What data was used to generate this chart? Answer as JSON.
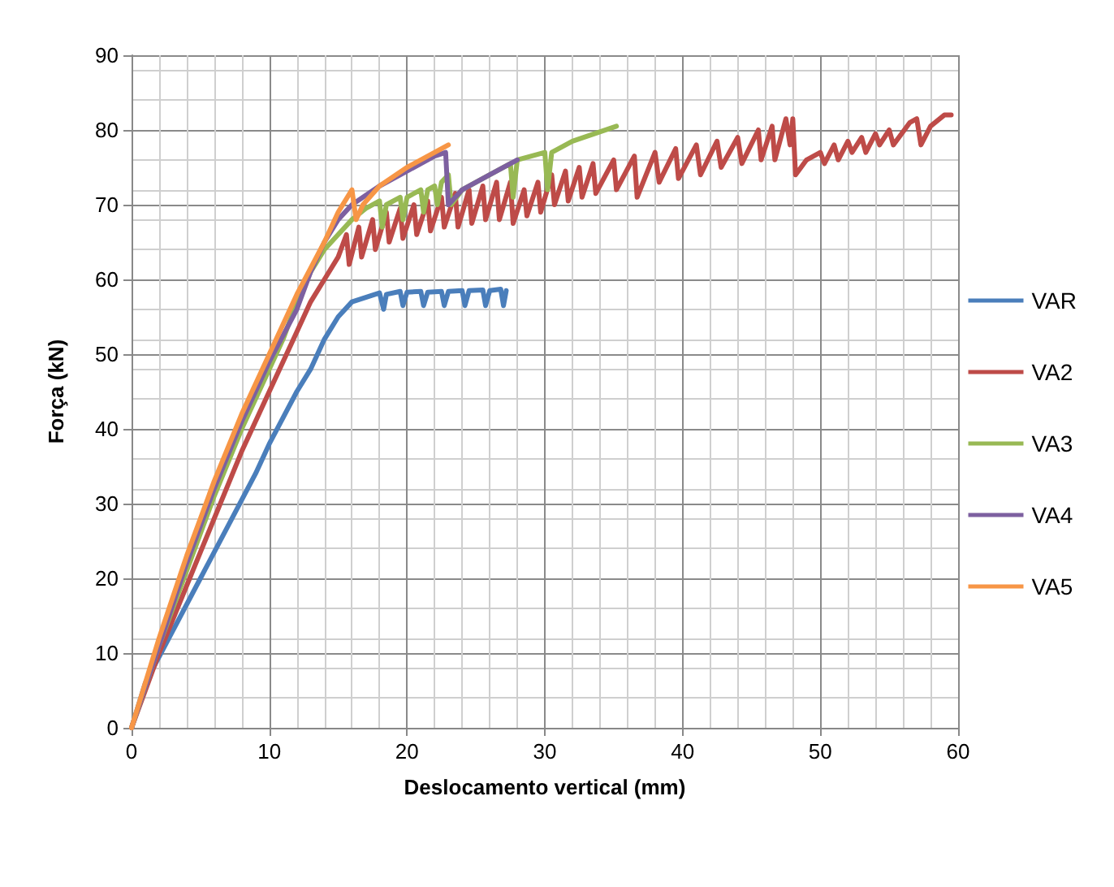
{
  "chart_data": {
    "type": "line",
    "xlabel": "Deslocamento vertical (mm)",
    "ylabel": "Força (kN)",
    "xlim": [
      0,
      60
    ],
    "xticks": [
      0,
      10,
      20,
      30,
      40,
      50,
      60
    ],
    "ylim": [
      0,
      90
    ],
    "yticks": [
      0,
      10,
      20,
      30,
      40,
      50,
      60,
      70,
      80,
      90
    ],
    "grid": true,
    "legend": "right",
    "marker": "none",
    "line_style": "solid",
    "series": [
      {
        "name": "VAR",
        "color": "#4a7ebb",
        "x": [
          0,
          1,
          3,
          5,
          7,
          9,
          10,
          12,
          13,
          14,
          15,
          16,
          18,
          18.3,
          18.5,
          19.5,
          19.7,
          20,
          21,
          21.2,
          21.5,
          22.5,
          22.7,
          23,
          24,
          24.2,
          24.5,
          25.5,
          25.7,
          26,
          26.8,
          27,
          27.2
        ],
        "values": [
          0,
          6,
          13,
          20,
          27,
          34,
          38,
          45,
          48,
          52,
          55,
          57,
          58.2,
          56,
          58,
          58.4,
          56.5,
          58.3,
          58.4,
          56.5,
          58.3,
          58.4,
          56.5,
          58.4,
          58.5,
          56.5,
          58.5,
          58.6,
          56.5,
          58.5,
          58.7,
          56.5,
          58.5
        ]
      },
      {
        "name": "VA2",
        "color": "#be4b48",
        "x": [
          0,
          2,
          4,
          6,
          8,
          10,
          12,
          13,
          14,
          15,
          15.6,
          15.8,
          16.5,
          16.7,
          17.5,
          17.7,
          18.5,
          18.7,
          19.5,
          19.7,
          20.5,
          20.7,
          21.5,
          21.7,
          22.5,
          22.7,
          23.5,
          23.7,
          24.5,
          24.7,
          25.5,
          25.7,
          26.5,
          26.7,
          27.5,
          27.7,
          28.5,
          28.7,
          29.5,
          29.7,
          30.5,
          30.7,
          31.5,
          31.7,
          32.5,
          32.7,
          33.5,
          33.7,
          35,
          35.2,
          36.5,
          36.7,
          38,
          38.3,
          39.5,
          39.7,
          41,
          41.3,
          42.5,
          42.8,
          44,
          44.3,
          45.5,
          45.7,
          46.5,
          46.7,
          47.5,
          47.8,
          48,
          48.2,
          49,
          50,
          50.3,
          51,
          51.3,
          52,
          52.3,
          53,
          53.3,
          54,
          54.3,
          55,
          55.3,
          56.5,
          57,
          57.3,
          58,
          59,
          59.5
        ],
        "values": [
          0,
          10,
          19,
          28,
          37,
          45,
          53,
          57,
          60,
          63,
          66,
          62,
          67,
          63,
          68,
          64,
          69,
          65,
          69.5,
          65.5,
          70,
          66,
          70.5,
          66.5,
          71,
          67,
          71.5,
          67,
          72,
          67.5,
          72.5,
          68,
          73,
          68,
          73,
          67.5,
          72,
          68.5,
          73,
          69,
          74,
          70,
          74.5,
          70.5,
          75,
          71,
          75.5,
          71.5,
          76,
          72,
          76.5,
          71,
          77,
          73,
          77.5,
          73.5,
          78,
          74,
          78.5,
          75,
          79,
          75.5,
          80,
          76,
          80.5,
          76,
          81.5,
          78,
          81.5,
          74,
          76,
          77,
          75.5,
          78,
          76,
          78.5,
          77,
          79,
          77,
          79.5,
          78,
          80,
          78,
          81,
          81.5,
          78,
          80.5,
          82,
          82
        ]
      },
      {
        "name": "VA3",
        "color": "#98b954",
        "x": [
          0,
          2,
          4,
          6,
          8,
          10,
          11,
          12,
          13,
          14,
          15,
          16,
          17,
          18,
          18.2,
          18.5,
          19.5,
          19.7,
          20,
          21,
          21.2,
          21.5,
          22,
          22.2,
          22.5,
          23,
          23.2,
          24,
          26,
          27.5,
          27.7,
          28,
          30,
          30.2,
          30.5,
          32,
          35.2
        ],
        "values": [
          0,
          11,
          21,
          31,
          40,
          48,
          52,
          57,
          61,
          64,
          66,
          68,
          69.5,
          70.5,
          67,
          70,
          71,
          68,
          71,
          72,
          69,
          72,
          72.5,
          70,
          73,
          74,
          70,
          72,
          74,
          75.5,
          71,
          76,
          77,
          72,
          77,
          78.5,
          80.5
        ]
      },
      {
        "name": "VA4",
        "color": "#7d60a0",
        "x": [
          0,
          2,
          4,
          6,
          8,
          10,
          12,
          13,
          14,
          15,
          16,
          18,
          20,
          22,
          22.8,
          23,
          24,
          26,
          28
        ],
        "values": [
          0,
          11,
          22,
          32,
          41,
          49,
          56,
          61,
          65,
          68,
          70,
          72.5,
          74.5,
          76.5,
          77,
          70,
          72,
          74,
          76
        ]
      },
      {
        "name": "VA5",
        "color": "#f79646",
        "x": [
          0,
          2,
          4,
          6,
          8,
          10,
          12,
          14,
          15,
          16,
          16.3,
          16.8,
          18,
          20,
          22,
          23
        ],
        "values": [
          0,
          12,
          23,
          33,
          42,
          50,
          58,
          65,
          69,
          72,
          68,
          70,
          72.5,
          75,
          77,
          78
        ]
      }
    ]
  }
}
